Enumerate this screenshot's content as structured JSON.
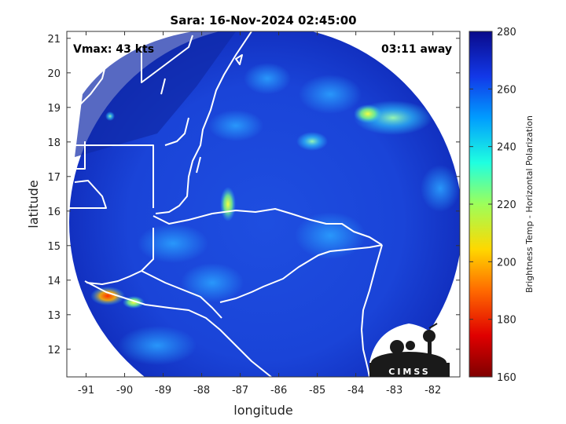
{
  "title": "Sara: 16-Nov-2024 02:45:00",
  "annotations": {
    "vmax": "Vmax: 43 kts",
    "time_away": "03:11 away"
  },
  "axes": {
    "xlabel": "longitude",
    "ylabel": "latitude",
    "xlim": [
      -91.5,
      -81.3
    ],
    "ylim": [
      11.2,
      21.2
    ],
    "xticks": [
      "-91",
      "-90",
      "-89",
      "-88",
      "-87",
      "-86",
      "-85",
      "-84",
      "-83",
      "-82"
    ],
    "yticks": [
      "21",
      "20",
      "19",
      "18",
      "17",
      "16",
      "15",
      "14",
      "13",
      "12"
    ]
  },
  "colorbar": {
    "label": "Brightness Temp - Horizontal Polarization",
    "min": 160,
    "max": 280,
    "ticks": [
      "280",
      "260",
      "240",
      "220",
      "200",
      "180",
      "160"
    ]
  },
  "logo": {
    "text": "CIMSS"
  },
  "colors": {
    "background_blue": "#1f4fd8",
    "dark_blue": "#0a1a8a",
    "coast": "#ffffff"
  },
  "chart_data": {
    "type": "heatmap",
    "title": "Sara: 16-Nov-2024 02:45:00",
    "xlabel": "longitude",
    "ylabel": "latitude",
    "xlim": [
      -91.5,
      -81.3
    ],
    "ylim": [
      11.2,
      21.2
    ],
    "colorbar_range": [
      160,
      280
    ],
    "swath_center": [
      -86.3,
      16.0
    ],
    "features": [
      {
        "lon": -87.1,
        "lat": 16.1,
        "tb": 215
      },
      {
        "lon": -90.6,
        "lat": 13.5,
        "tb": 180
      },
      {
        "lon": -90.1,
        "lat": 13.4,
        "tb": 220
      },
      {
        "lon": -85.0,
        "lat": 18.0,
        "tb": 238
      },
      {
        "lon": -82.0,
        "lat": 18.8,
        "tb": 240
      },
      {
        "lon": -83.1,
        "lat": 19.0,
        "tb": 245
      }
    ]
  }
}
